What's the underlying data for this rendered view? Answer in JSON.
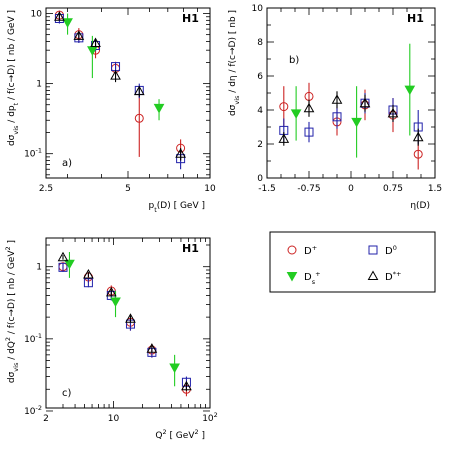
{
  "colors": {
    "Dplus": "#cc2222",
    "D0": "#2222aa",
    "Ds": "#22cc22",
    "Dstar": "#000000"
  },
  "legend": [
    {
      "series": "Dplus",
      "base": "D",
      "sup": "+",
      "sub": "",
      "marker": "circle"
    },
    {
      "series": "D0",
      "base": "D",
      "sup": "0",
      "sub": "",
      "marker": "square"
    },
    {
      "series": "Ds",
      "base": "D",
      "sup": "+",
      "sub": "s",
      "marker": "triangle-down-filled"
    },
    {
      "series": "Dstar",
      "base": "D",
      "sup": "*+",
      "sub": "",
      "marker": "triangle-up"
    }
  ],
  "chart_data": [
    {
      "id": "panel-a",
      "type": "scatter",
      "panel_label": "a)",
      "experiment": "H1",
      "xlabel_base": "p",
      "xlabel_sub": "t",
      "xlabel_rest": "(D)  [ GeV ]",
      "ylabel": "dσ",
      "ylabel_sub": "vis",
      "ylabel_rest": "/ dp",
      "ylabel_sub2": "t",
      "ylabel_tail": " / f(c→D)  [ nb / GeV ]",
      "xscale": "log",
      "yscale": "log",
      "xlim": [
        2.5,
        10
      ],
      "ylim": [
        0.045,
        12
      ],
      "xticks": [
        {
          "v": 2.5,
          "t": "2.5"
        },
        {
          "v": 5,
          "t": "5"
        },
        {
          "v": 10,
          "t": "10"
        }
      ],
      "xminor": [
        3,
        4,
        6,
        7,
        8,
        9
      ],
      "yticks": [
        {
          "v": 0.1,
          "t": "10",
          "sup": "-1"
        },
        {
          "v": 1,
          "t": "1"
        },
        {
          "v": 10,
          "t": "10"
        }
      ],
      "yminor": [
        0.05,
        0.06,
        0.07,
        0.08,
        0.09,
        0.2,
        0.3,
        0.4,
        0.5,
        0.6,
        0.7,
        0.8,
        0.9,
        2,
        3,
        4,
        5,
        6,
        7,
        8,
        9
      ],
      "series": [
        {
          "key": "Dplus",
          "points": [
            [
              2.8,
              9.5,
              8.0,
              11.0
            ],
            [
              3.3,
              5.0,
              4.0,
              6.2
            ],
            [
              3.8,
              3.0,
              2.3,
              3.9
            ],
            [
              4.5,
              1.65,
              1.3,
              2.05
            ],
            [
              5.5,
              0.32,
              0.09,
              0.7
            ],
            [
              7.8,
              0.12,
              0.08,
              0.16
            ]
          ]
        },
        {
          "key": "D0",
          "points": [
            [
              2.8,
              8.5,
              7.2,
              10.0
            ],
            [
              3.3,
              4.5,
              3.8,
              5.3
            ],
            [
              3.8,
              3.5,
              2.9,
              4.2
            ],
            [
              4.5,
              1.75,
              1.5,
              2.0
            ],
            [
              5.5,
              0.8,
              0.62,
              1.0
            ],
            [
              7.8,
              0.085,
              0.06,
              0.11
            ]
          ]
        },
        {
          "key": "Ds",
          "points": [
            [
              3.0,
              7.5,
              5.0,
              10.0
            ],
            [
              3.7,
              3.0,
              1.2,
              4.8
            ],
            [
              6.5,
              0.45,
              0.3,
              0.6
            ]
          ]
        },
        {
          "key": "Dstar",
          "points": [
            [
              2.8,
              9.0,
              8.0,
              10.0
            ],
            [
              3.3,
              4.8,
              4.2,
              5.4
            ],
            [
              3.8,
              3.8,
              3.3,
              4.3
            ],
            [
              4.5,
              1.3,
              1.05,
              1.55
            ],
            [
              5.5,
              0.78,
              0.65,
              0.92
            ],
            [
              7.8,
              0.1,
              0.08,
              0.12
            ]
          ]
        }
      ]
    },
    {
      "id": "panel-b",
      "type": "scatter",
      "panel_label": "b)",
      "experiment": "H1",
      "xlabel_base": "η(D)",
      "ylabel": "dσ",
      "ylabel_sub": "vis",
      "ylabel_rest": "/ dη",
      "ylabel_tail": " / f(c→D)  [ nb ]",
      "xscale": "linear",
      "yscale": "linear",
      "xlim": [
        -1.5,
        1.5
      ],
      "ylim": [
        0,
        10
      ],
      "xticks": [
        {
          "v": -1.5,
          "t": "-1.5"
        },
        {
          "v": -0.75,
          "t": "-0.75"
        },
        {
          "v": 0,
          "t": "0"
        },
        {
          "v": 0.75,
          "t": "0.75"
        },
        {
          "v": 1.5,
          "t": "1.5"
        }
      ],
      "xminor": [
        -1.25,
        -1,
        -0.5,
        -0.25,
        0.25,
        0.5,
        1,
        1.25
      ],
      "yticks": [
        {
          "v": 0,
          "t": "0"
        },
        {
          "v": 2,
          "t": "2"
        },
        {
          "v": 4,
          "t": "4"
        },
        {
          "v": 6,
          "t": "6"
        },
        {
          "v": 8,
          "t": "8"
        },
        {
          "v": 10,
          "t": "10"
        }
      ],
      "yminor": [
        1,
        3,
        5,
        7,
        9
      ],
      "series": [
        {
          "key": "Dplus",
          "points": [
            [
              -1.2,
              4.2,
              3.0,
              5.4
            ],
            [
              -0.75,
              4.8,
              4.0,
              5.6
            ],
            [
              -0.25,
              3.3,
              2.5,
              4.1
            ],
            [
              0.25,
              4.3,
              3.4,
              5.2
            ],
            [
              0.75,
              3.7,
              2.7,
              4.7
            ],
            [
              1.2,
              1.4,
              0.5,
              2.3
            ]
          ]
        },
        {
          "key": "D0",
          "points": [
            [
              -1.2,
              2.8,
              2.1,
              3.5
            ],
            [
              -0.75,
              2.7,
              2.1,
              3.3
            ],
            [
              -0.25,
              3.6,
              2.9,
              4.3
            ],
            [
              0.25,
              4.4,
              3.8,
              5.0
            ],
            [
              0.75,
              4.0,
              3.3,
              4.7
            ],
            [
              1.2,
              3.0,
              2.0,
              4.0
            ]
          ]
        },
        {
          "key": "Ds",
          "points": [
            [
              -0.98,
              3.8,
              2.2,
              5.4
            ],
            [
              0.1,
              3.3,
              1.2,
              5.4
            ],
            [
              1.05,
              5.2,
              2.5,
              7.9
            ]
          ]
        },
        {
          "key": "Dstar",
          "points": [
            [
              -1.2,
              2.3,
              1.9,
              2.7
            ],
            [
              -0.75,
              4.1,
              3.6,
              4.6
            ],
            [
              -0.25,
              4.6,
              4.1,
              5.1
            ],
            [
              0.25,
              4.4,
              3.9,
              4.9
            ],
            [
              0.75,
              3.8,
              3.3,
              4.3
            ],
            [
              1.2,
              2.4,
              1.9,
              2.9
            ]
          ]
        }
      ]
    },
    {
      "id": "panel-c",
      "type": "scatter",
      "panel_label": "c)",
      "experiment": "H1",
      "xlabel_base": "Q",
      "xlabel_sup": "2",
      "xlabel_rest": "  [ GeV",
      "xlabel_sup2": "2",
      "xlabel_tail": " ]",
      "ylabel": "dσ",
      "ylabel_sub": "vis",
      "ylabel_rest": "/ dQ",
      "ylabel_sup": "2",
      "ylabel_tail": " / f(c→D)  [ nb / GeV",
      "ylabel_sup2": "2",
      "ylabel_end": " ]",
      "xscale": "log",
      "yscale": "log",
      "xlim": [
        2,
        100
      ],
      "ylim": [
        0.011,
        2.5
      ],
      "xticks": [
        {
          "v": 2,
          "t": "2"
        },
        {
          "v": 10,
          "t": "10"
        },
        {
          "v": 100,
          "t": "10",
          "sup": "2"
        }
      ],
      "xminor": [
        3,
        4,
        5,
        6,
        7,
        8,
        9,
        20,
        30,
        40,
        50,
        60,
        70,
        80,
        90
      ],
      "yticks": [
        {
          "v": 0.01,
          "t": "10",
          "sup": "-2"
        },
        {
          "v": 0.1,
          "t": "10",
          "sup": "-1"
        },
        {
          "v": 1,
          "t": "1"
        }
      ],
      "yminor": [
        0.02,
        0.03,
        0.04,
        0.05,
        0.06,
        0.07,
        0.08,
        0.09,
        0.2,
        0.3,
        0.4,
        0.5,
        0.6,
        0.7,
        0.8,
        0.9,
        2
      ],
      "series": [
        {
          "key": "Dplus",
          "points": [
            [
              3.0,
              1.0,
              0.85,
              1.15
            ],
            [
              5.5,
              0.72,
              0.6,
              0.84
            ],
            [
              9.5,
              0.46,
              0.38,
              0.55
            ],
            [
              15,
              0.17,
              0.13,
              0.21
            ],
            [
              25,
              0.07,
              0.055,
              0.085
            ],
            [
              57,
              0.02,
              0.016,
              0.024
            ]
          ]
        },
        {
          "key": "D0",
          "points": [
            [
              3.0,
              0.98,
              0.85,
              1.1
            ],
            [
              5.5,
              0.6,
              0.52,
              0.68
            ],
            [
              9.5,
              0.4,
              0.34,
              0.46
            ],
            [
              15,
              0.16,
              0.13,
              0.19
            ],
            [
              25,
              0.065,
              0.055,
              0.075
            ],
            [
              57,
              0.025,
              0.02,
              0.03
            ]
          ]
        },
        {
          "key": "Ds",
          "points": [
            [
              3.5,
              1.1,
              0.7,
              1.6
            ],
            [
              10.5,
              0.33,
              0.2,
              0.46
            ],
            [
              43,
              0.04,
              0.022,
              0.06
            ]
          ]
        },
        {
          "key": "Dstar",
          "points": [
            [
              3.0,
              1.35,
              1.25,
              1.45
            ],
            [
              5.5,
              0.78,
              0.72,
              0.84
            ],
            [
              9.5,
              0.44,
              0.4,
              0.48
            ],
            [
              15,
              0.19,
              0.17,
              0.21
            ],
            [
              25,
              0.073,
              0.066,
              0.08
            ],
            [
              57,
              0.022,
              0.019,
              0.025
            ]
          ]
        }
      ]
    }
  ]
}
